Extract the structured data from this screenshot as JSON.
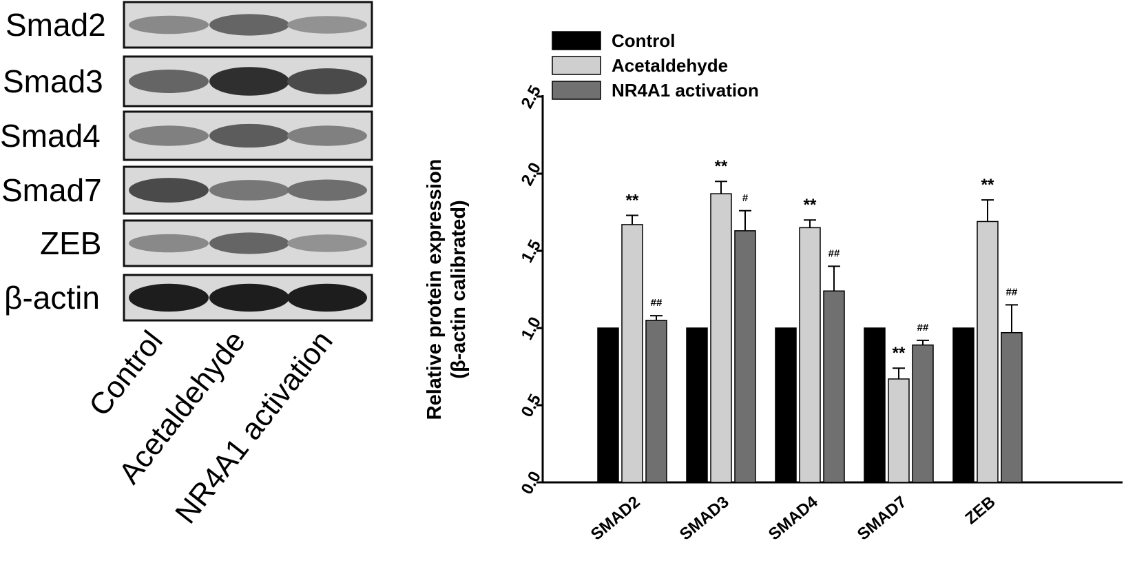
{
  "blot": {
    "rows": [
      {
        "label": "Smad2",
        "intensity": [
          0.35,
          0.55,
          0.3
        ]
      },
      {
        "label": "Smad3",
        "intensity": [
          0.55,
          0.85,
          0.7
        ]
      },
      {
        "label": "Smad4",
        "intensity": [
          0.4,
          0.6,
          0.4
        ]
      },
      {
        "label": "Smad7",
        "intensity": [
          0.7,
          0.45,
          0.5
        ]
      },
      {
        "label": "ZEB",
        "intensity": [
          0.35,
          0.55,
          0.3
        ]
      },
      {
        "label": "β-actin",
        "intensity": [
          0.95,
          0.95,
          0.95
        ]
      }
    ],
    "lanes": [
      "Control",
      "Acetaldehyde",
      "NR4A1 activation"
    ]
  },
  "chart_data": {
    "type": "bar",
    "categories": [
      "SMAD2",
      "SMAD3",
      "SMAD4",
      "SMAD7",
      "ZEB"
    ],
    "series": [
      {
        "name": "Control",
        "color": "#000000",
        "values": [
          1.0,
          1.0,
          1.0,
          1.0,
          1.0
        ],
        "errors": [
          0,
          0,
          0,
          0,
          0
        ],
        "annotations": [
          "",
          "",
          "",
          "",
          ""
        ]
      },
      {
        "name": "Acetaldehyde",
        "color": "#cfcfcf",
        "values": [
          1.67,
          1.87,
          1.65,
          0.67,
          1.69
        ],
        "errors": [
          0.06,
          0.08,
          0.05,
          0.07,
          0.14
        ],
        "annotations": [
          "**",
          "**",
          "**",
          "**",
          "**"
        ]
      },
      {
        "name": "NR4A1 activation",
        "color": "#707070",
        "values": [
          1.05,
          1.63,
          1.24,
          0.89,
          0.97
        ],
        "errors": [
          0.03,
          0.13,
          0.16,
          0.03,
          0.18
        ],
        "annotations": [
          "##",
          "#",
          "##",
          "##",
          "##"
        ]
      }
    ],
    "ylabel": "Relative protein expression (β-actin  calibrated)",
    "ylabel_lines": [
      "Relative protein expression",
      "(β-actin  calibrated)"
    ],
    "ylim": [
      0,
      2.5
    ],
    "yticks": [
      "0.0",
      "0.5",
      "1.0",
      "1.5",
      "2.0",
      "2.5"
    ],
    "grid": false,
    "legend_position": "top-left"
  }
}
